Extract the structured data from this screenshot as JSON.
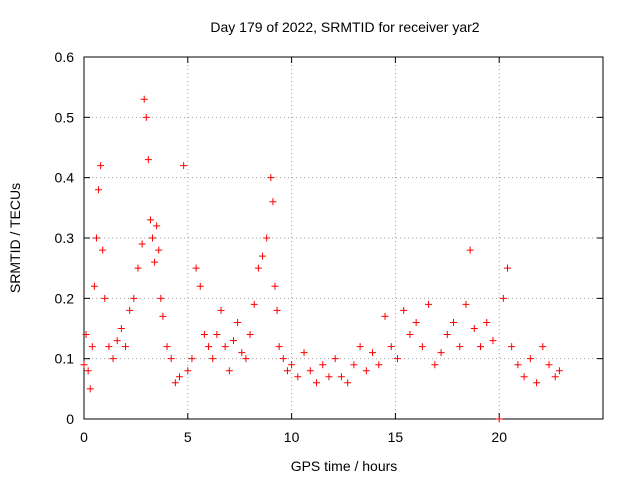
{
  "chart_data": {
    "type": "scatter",
    "title": "Day 179 of 2022, SRMTID for receiver yar2",
    "xlabel": "GPS time / hours",
    "ylabel": "SRMTID / TECUs",
    "xlim": [
      0,
      25
    ],
    "ylim": [
      0,
      0.6
    ],
    "x_ticks": [
      0,
      5,
      10,
      15,
      20
    ],
    "x_tick_labels": [
      "0",
      "5",
      "10",
      "15",
      "20"
    ],
    "y_ticks": [
      0,
      0.1,
      0.2,
      0.3,
      0.4,
      0.5,
      0.6
    ],
    "y_tick_labels": [
      "0",
      "0.1",
      "0.2",
      "0.3",
      "0.4",
      "0.5",
      "0.6"
    ],
    "grid": true,
    "marker": "plus",
    "color": "#ff0000",
    "series": [
      {
        "name": "SRMTID",
        "x": [
          0.0,
          0.1,
          0.2,
          0.3,
          0.4,
          0.5,
          0.6,
          0.7,
          0.8,
          0.9,
          1.0,
          1.2,
          1.4,
          1.6,
          1.8,
          2.0,
          2.2,
          2.4,
          2.6,
          2.8,
          2.9,
          3.0,
          3.1,
          3.2,
          3.3,
          3.4,
          3.5,
          3.6,
          3.7,
          3.8,
          4.0,
          4.2,
          4.4,
          4.6,
          4.8,
          5.0,
          5.2,
          5.4,
          5.6,
          5.8,
          6.0,
          6.2,
          6.4,
          6.6,
          6.8,
          7.0,
          7.2,
          7.4,
          7.6,
          7.8,
          8.0,
          8.2,
          8.4,
          8.6,
          8.8,
          9.0,
          9.1,
          9.2,
          9.3,
          9.4,
          9.6,
          9.8,
          10.0,
          10.3,
          10.6,
          10.9,
          11.2,
          11.5,
          11.8,
          12.1,
          12.4,
          12.7,
          13.0,
          13.3,
          13.6,
          13.9,
          14.2,
          14.5,
          14.8,
          15.1,
          15.4,
          15.7,
          16.0,
          16.3,
          16.6,
          16.9,
          17.2,
          17.5,
          17.8,
          18.1,
          18.4,
          18.6,
          18.8,
          19.1,
          19.4,
          19.7,
          20.0,
          20.2,
          20.4,
          20.6,
          20.9,
          21.2,
          21.5,
          21.8,
          22.1,
          22.4,
          22.7,
          22.9
        ],
        "y": [
          0.09,
          0.14,
          0.08,
          0.05,
          0.12,
          0.22,
          0.3,
          0.38,
          0.42,
          0.28,
          0.2,
          0.12,
          0.1,
          0.13,
          0.15,
          0.12,
          0.18,
          0.2,
          0.25,
          0.29,
          0.53,
          0.5,
          0.43,
          0.33,
          0.3,
          0.26,
          0.32,
          0.28,
          0.2,
          0.17,
          0.12,
          0.1,
          0.06,
          0.07,
          0.42,
          0.08,
          0.1,
          0.25,
          0.22,
          0.14,
          0.12,
          0.1,
          0.14,
          0.18,
          0.12,
          0.08,
          0.13,
          0.16,
          0.11,
          0.1,
          0.14,
          0.19,
          0.25,
          0.27,
          0.3,
          0.4,
          0.36,
          0.22,
          0.18,
          0.12,
          0.1,
          0.08,
          0.09,
          0.07,
          0.11,
          0.08,
          0.06,
          0.09,
          0.07,
          0.1,
          0.07,
          0.06,
          0.09,
          0.12,
          0.08,
          0.11,
          0.09,
          0.17,
          0.12,
          0.1,
          0.18,
          0.14,
          0.16,
          0.12,
          0.19,
          0.09,
          0.11,
          0.14,
          0.16,
          0.12,
          0.19,
          0.28,
          0.15,
          0.12,
          0.16,
          0.13,
          0.0,
          0.2,
          0.25,
          0.12,
          0.09,
          0.07,
          0.1,
          0.06,
          0.12,
          0.09,
          0.07,
          0.08
        ]
      }
    ]
  }
}
